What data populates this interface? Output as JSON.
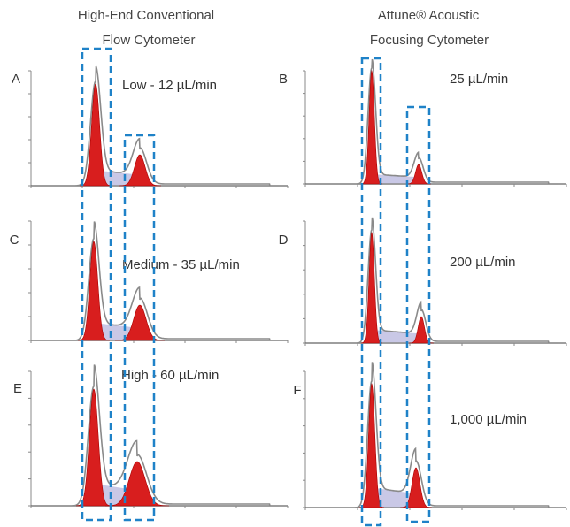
{
  "columns": [
    {
      "title_lines": [
        "High-End Conventional",
        "Flow Cytometer"
      ]
    },
    {
      "title_lines": [
        "Attune® Acoustic",
        "Focusing Cytometer"
      ]
    }
  ],
  "panels": [
    {
      "letter": "A",
      "rate": "Low - 12 µL/min"
    },
    {
      "letter": "B",
      "rate": "25 µL/min"
    },
    {
      "letter": "C",
      "rate": "Medium - 35 µL/min"
    },
    {
      "letter": "D",
      "rate": "200 µL/min"
    },
    {
      "letter": "E",
      "rate": "High - 60 µL/min"
    },
    {
      "letter": "F",
      "rate": "1,000 µL/min"
    }
  ]
}
